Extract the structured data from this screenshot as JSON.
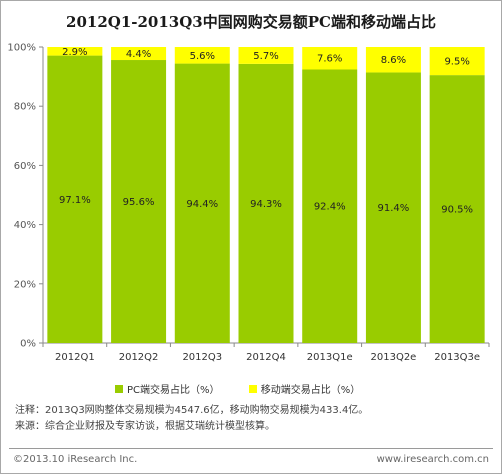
{
  "title": "2012Q1-2013Q3中国网购交易额PC端和移动端占比",
  "chart_data": {
    "type": "bar",
    "stacked": true,
    "categories": [
      "2012Q1",
      "2012Q2",
      "2012Q3",
      "2012Q4",
      "2013Q1e",
      "2013Q2e",
      "2013Q3e"
    ],
    "series": [
      {
        "name": "PC端交易占比（%）",
        "color": "#99cc00",
        "values": [
          97.1,
          95.6,
          94.4,
          94.3,
          92.4,
          91.4,
          90.5
        ],
        "labels": [
          "97.1%",
          "95.6%",
          "94.4%",
          "94.3%",
          "92.4%",
          "91.4%",
          "90.5%"
        ]
      },
      {
        "name": "移动端交易占比（%）",
        "color": "#ffff00",
        "values": [
          2.9,
          4.4,
          5.6,
          5.7,
          7.6,
          8.6,
          9.5
        ],
        "labels": [
          "2.9%",
          "4.4%",
          "5.6%",
          "5.7%",
          "7.6%",
          "8.6%",
          "9.5%"
        ]
      }
    ],
    "yticks": [
      "0%",
      "20%",
      "40%",
      "60%",
      "80%",
      "100%"
    ],
    "ylim": [
      0,
      100
    ],
    "grid": false,
    "legend_position": "bottom"
  },
  "notes": [
    "注释：2013Q3网购整体交易规模为4547.6亿，移动购物交易规模为433.4亿。",
    "来源：综合企业财报及专家访谈，根据艾瑞统计模型核算。"
  ],
  "footer": {
    "left": "©2013.10 iResearch Inc.",
    "right": "www.iresearch.com.cn"
  }
}
